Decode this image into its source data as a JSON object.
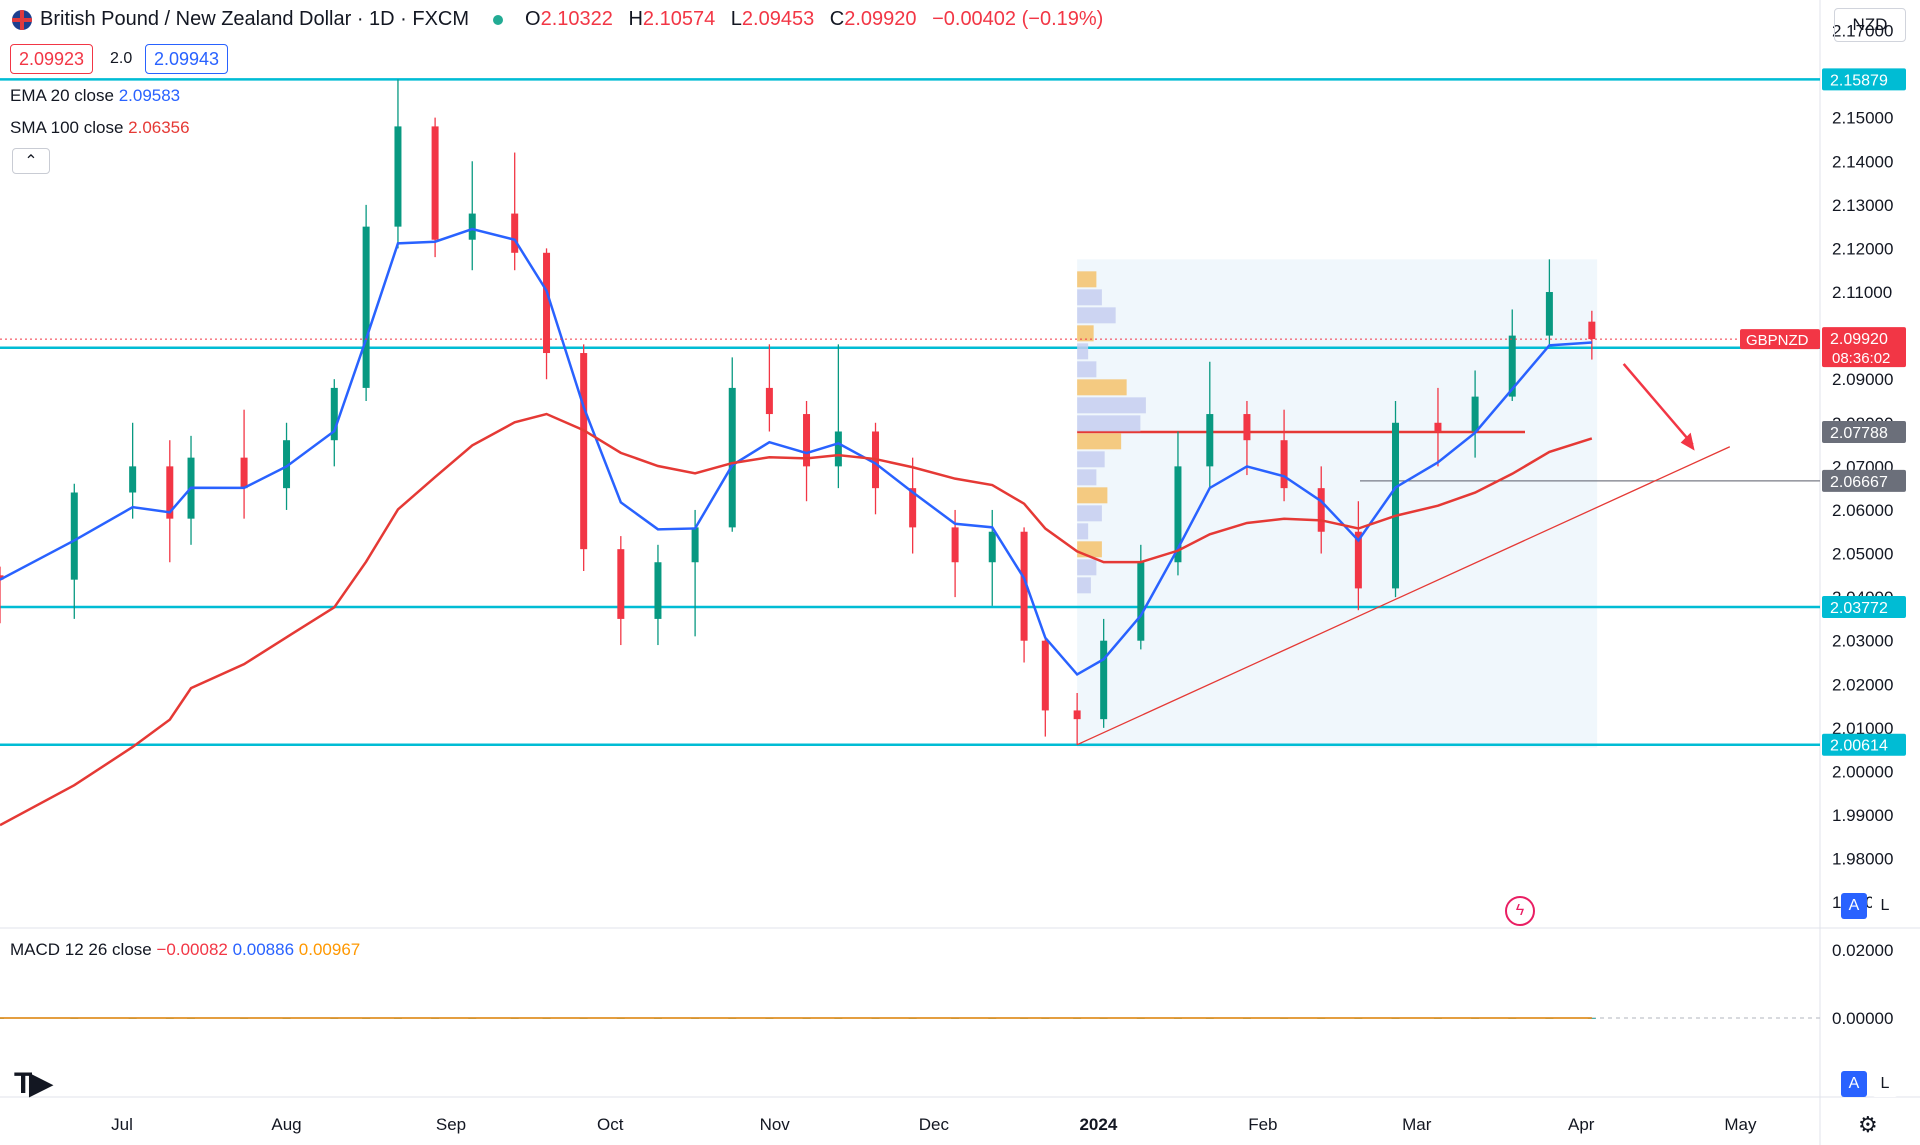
{
  "header": {
    "symbol_title": "British Pound / New Zealand Dollar · 1D · FXCM",
    "o_label": "O",
    "o_value": "2.10322",
    "h_label": "H",
    "h_value": "2.10574",
    "l_label": "L",
    "l_value": "2.09453",
    "c_label": "C",
    "c_value": "2.09920",
    "change": "−0.00402 (−0.19%)"
  },
  "trade": {
    "sell_price": "2.09923",
    "spread": "2.0",
    "buy_price": "2.09943"
  },
  "indicators": {
    "ema_label": "EMA 20 close",
    "ema_value": "2.09583",
    "sma_label": "SMA 100 close",
    "sma_value": "2.06356",
    "macd_label": "MACD 12 26 close",
    "macd_hist": "−0.00082",
    "macd_line": "0.00886",
    "macd_signal": "0.00967"
  },
  "currency": "NZD",
  "buttons": {
    "collapse": "⌃",
    "auto": "A",
    "log": "L"
  },
  "colors": {
    "up": "#089981",
    "down": "#f23645",
    "ema": "#2962ff",
    "sma": "#e53935",
    "level": "#00bcd4",
    "macd": "#2962ff",
    "signal": "#ff9800"
  },
  "chart_data": {
    "type": "candlestick",
    "symbol": "GBPNZD",
    "timeframe": "1D",
    "y_range": [
      1.965,
      2.177
    ],
    "y_ticks": [
      "2.17000",
      "2.15000",
      "2.14000",
      "2.13000",
      "2.12000",
      "2.11000",
      "2.10000",
      "2.09000",
      "2.08000",
      "2.07000",
      "2.06000",
      "2.05000",
      "2.04000",
      "2.03000",
      "2.02000",
      "2.01000",
      "2.00000",
      "1.99000",
      "1.98000",
      "1.97000"
    ],
    "x_labels": [
      "Jul",
      "Aug",
      "Sep",
      "Oct",
      "Nov",
      "Dec",
      "2024",
      "Feb",
      "Mar",
      "Apr",
      "May"
    ],
    "x_range": [
      "2023-06-08",
      "2024-05-16"
    ],
    "horizontal_levels": [
      {
        "value": 2.15879,
        "label": "2.15879"
      },
      {
        "value": 2.0972,
        "label": "2.09720"
      },
      {
        "value": 2.03772,
        "label": "2.03772"
      },
      {
        "value": 2.00614,
        "label": "2.00614"
      }
    ],
    "volume_profile_lines": [
      {
        "value": 2.07788,
        "label": "2.07788",
        "color": "#e53935"
      },
      {
        "value": 2.06667,
        "label": "2.06667",
        "color": "#787b86"
      }
    ],
    "last_price": {
      "ticker": "GBPNZD",
      "value": "2.09920",
      "countdown": "08:36:02"
    },
    "trendline": [
      {
        "x": "2023-12-28",
        "y": 2.00614
      },
      {
        "x": "2024-04-29",
        "y": 2.0745
      }
    ],
    "arrow": [
      {
        "x": "2024-04-09",
        "y": 2.0935
      },
      {
        "x": "2024-04-22",
        "y": 2.075
      }
    ],
    "volume_profile_range": {
      "x0": "2023-12-28",
      "x1": "2024-04-04",
      "y0": 2.0055,
      "y1": 2.1175
    },
    "candles": [
      [
        "2023-06-08",
        2.045,
        2.047,
        2.034,
        2.044
      ],
      [
        "2023-06-22",
        2.044,
        2.066,
        2.035,
        2.064
      ],
      [
        "2023-07-03",
        2.064,
        2.08,
        2.058,
        2.07
      ],
      [
        "2023-07-10",
        2.07,
        2.076,
        2.048,
        2.058
      ],
      [
        "2023-07-14",
        2.058,
        2.077,
        2.052,
        2.072
      ],
      [
        "2023-07-24",
        2.072,
        2.083,
        2.058,
        2.065
      ],
      [
        "2023-08-01",
        2.065,
        2.08,
        2.06,
        2.076
      ],
      [
        "2023-08-10",
        2.076,
        2.09,
        2.07,
        2.088
      ],
      [
        "2023-08-16",
        2.088,
        2.13,
        2.085,
        2.125
      ],
      [
        "2023-08-22",
        2.125,
        2.1588,
        2.12,
        2.148
      ],
      [
        "2023-08-29",
        2.148,
        2.15,
        2.118,
        2.122
      ],
      [
        "2023-09-05",
        2.122,
        2.14,
        2.115,
        2.128
      ],
      [
        "2023-09-13",
        2.128,
        2.142,
        2.115,
        2.119
      ],
      [
        "2023-09-19",
        2.119,
        2.12,
        2.09,
        2.096
      ],
      [
        "2023-09-26",
        2.096,
        2.098,
        2.046,
        2.051
      ],
      [
        "2023-10-03",
        2.051,
        2.054,
        2.029,
        2.035
      ],
      [
        "2023-10-10",
        2.035,
        2.052,
        2.029,
        2.048
      ],
      [
        "2023-10-17",
        2.048,
        2.06,
        2.031,
        2.056
      ],
      [
        "2023-10-24",
        2.056,
        2.095,
        2.055,
        2.088
      ],
      [
        "2023-10-31",
        2.088,
        2.098,
        2.078,
        2.082
      ],
      [
        "2023-11-07",
        2.082,
        2.085,
        2.062,
        2.07
      ],
      [
        "2023-11-13",
        2.07,
        2.098,
        2.065,
        2.078
      ],
      [
        "2023-11-20",
        2.078,
        2.08,
        2.059,
        2.065
      ],
      [
        "2023-11-27",
        2.065,
        2.072,
        2.05,
        2.056
      ],
      [
        "2023-12-05",
        2.056,
        2.06,
        2.04,
        2.048
      ],
      [
        "2023-12-12",
        2.048,
        2.06,
        2.038,
        2.055
      ],
      [
        "2023-12-18",
        2.055,
        2.056,
        2.025,
        2.03
      ],
      [
        "2023-12-22",
        2.03,
        2.031,
        2.008,
        2.014
      ],
      [
        "2023-12-28",
        2.014,
        2.018,
        2.0061,
        2.012
      ],
      [
        "2024-01-02",
        2.012,
        2.035,
        2.01,
        2.03
      ],
      [
        "2024-01-09",
        2.03,
        2.052,
        2.028,
        2.048
      ],
      [
        "2024-01-16",
        2.048,
        2.078,
        2.045,
        2.07
      ],
      [
        "2024-01-22",
        2.07,
        2.094,
        2.065,
        2.082
      ],
      [
        "2024-01-29",
        2.082,
        2.085,
        2.068,
        2.076
      ],
      [
        "2024-02-05",
        2.076,
        2.083,
        2.062,
        2.065
      ],
      [
        "2024-02-12",
        2.065,
        2.07,
        2.05,
        2.055
      ],
      [
        "2024-02-19",
        2.055,
        2.062,
        2.037,
        2.042
      ],
      [
        "2024-02-26",
        2.042,
        2.085,
        2.04,
        2.08
      ],
      [
        "2024-03-05",
        2.08,
        2.088,
        2.07,
        2.078
      ],
      [
        "2024-03-12",
        2.078,
        2.092,
        2.072,
        2.086
      ],
      [
        "2024-03-19",
        2.086,
        2.106,
        2.085,
        2.1
      ],
      [
        "2024-03-26",
        2.1,
        2.1175,
        2.098,
        2.11
      ],
      [
        "2024-04-03",
        2.1032,
        2.1057,
        2.0945,
        2.0992
      ]
    ],
    "series": [
      {
        "name": "EMA 20 close",
        "value": 2.09583
      },
      {
        "name": "SMA 100 close",
        "value": 2.06356
      },
      {
        "name": "MACD 12 26 close",
        "values": {
          "histogram": -0.00082,
          "macd": 0.00886,
          "signal": 0.00967
        }
      }
    ],
    "macd_y_ticks": [
      "0.02000",
      "0.00000"
    ]
  }
}
